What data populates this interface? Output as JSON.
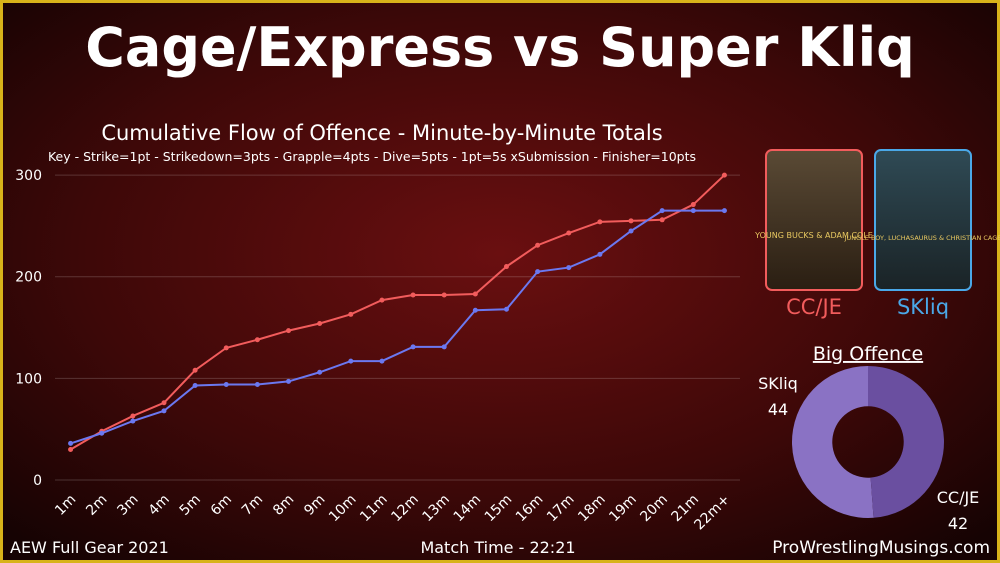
{
  "header": {
    "title": "Cage/Express vs Super Kliq"
  },
  "chart_data": [
    {
      "type": "line",
      "title": "Cumulative Flow of Offence - Minute-by-Minute Totals",
      "subtitle": "Key - Strike=1pt - Strikedown=3pts - Grapple=4pts - Dive=5pts - 1pt=5s xSubmission - Finisher=10pts",
      "categories": [
        "1m",
        "2m",
        "3m",
        "4m",
        "5m",
        "6m",
        "7m",
        "8m",
        "9m",
        "10m",
        "11m",
        "12m",
        "13m",
        "14m",
        "15m",
        "16m",
        "17m",
        "18m",
        "19m",
        "20m",
        "21m",
        "22m+"
      ],
      "series": [
        {
          "name": "CC/JE",
          "color": "#f25c5c",
          "values": [
            30,
            48,
            63,
            76,
            108,
            130,
            138,
            147,
            154,
            163,
            177,
            182,
            182,
            183,
            210,
            231,
            243,
            254,
            255,
            256,
            271,
            300
          ]
        },
        {
          "name": "SKliq",
          "color": "#6b78f0",
          "values": [
            36,
            46,
            58,
            68,
            93,
            94,
            94,
            97,
            106,
            117,
            117,
            131,
            131,
            167,
            168,
            205,
            209,
            222,
            245,
            265,
            265,
            265
          ]
        }
      ],
      "ylim": [
        0,
        305
      ],
      "yticks": [
        0,
        100,
        200,
        300
      ],
      "grid": true
    },
    {
      "type": "pie",
      "title": "Big Offence",
      "categories": [
        "SKliq",
        "CC/JE"
      ],
      "values": [
        44,
        42
      ],
      "colors": [
        "#8a72c4",
        "#6a4fa0"
      ],
      "hole": 0.47
    }
  ],
  "posters": [
    {
      "label": "CC/JE",
      "caption": "YOUNG BUCKS & ADAM COLE"
    },
    {
      "label": "SKliq",
      "caption": "JUNGLE BOY, LUCHASAURUS & CHRISTIAN CAGE"
    }
  ],
  "footer": {
    "left": "AEW Full Gear 2021",
    "center": "Match Time - 22:21",
    "right": "ProWrestlingMusings.com"
  }
}
